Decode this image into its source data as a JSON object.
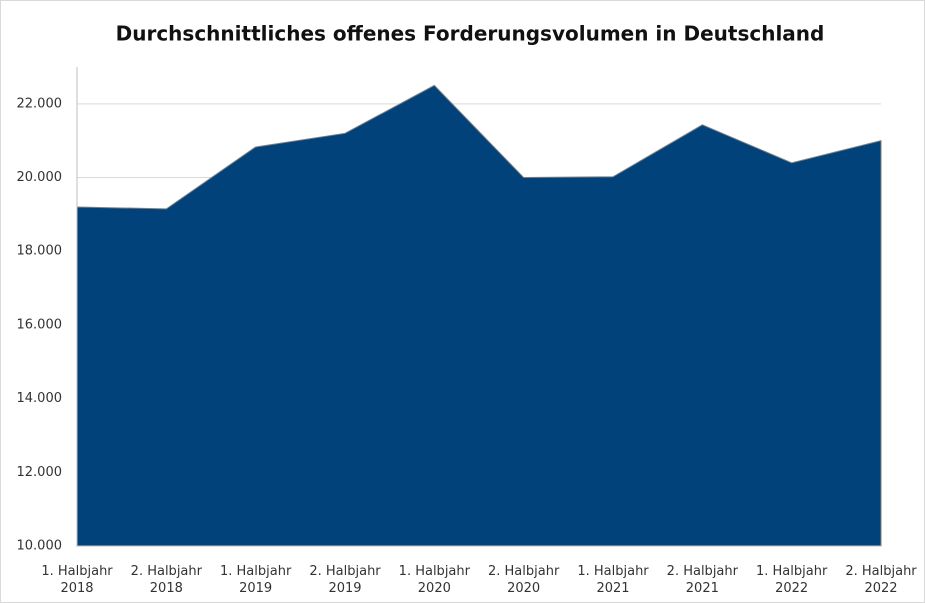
{
  "chart_data": {
    "type": "area",
    "title": "Durchschnittliches offenes Forderungsvolumen in Deutschland",
    "categories": [
      "1. Halbjahr 2018",
      "2. Halbjahr 2018",
      "1. Halbjahr 2019",
      "2. Halbjahr 2019",
      "1. Halbjahr 2020",
      "2. Halbjahr 2020",
      "1. Halbjahr 2021",
      "2. Halbjahr 2021",
      "1. Halbjahr 2022",
      "2. Halbjahr 2022"
    ],
    "values": [
      19200,
      19150,
      20830,
      21200,
      22500,
      20000,
      20020,
      21430,
      20400,
      21000
    ],
    "color": "#02427b",
    "ylim": [
      10000,
      23000
    ],
    "yticks": [
      {
        "value": 10000,
        "label": "10.000"
      },
      {
        "value": 12000,
        "label": "12.000"
      },
      {
        "value": 14000,
        "label": "14.000"
      },
      {
        "value": 16000,
        "label": "16.000"
      },
      {
        "value": 18000,
        "label": "18.000"
      },
      {
        "value": 20000,
        "label": "20.000"
      },
      {
        "value": 22000,
        "label": "22.000"
      }
    ],
    "grid": true
  }
}
